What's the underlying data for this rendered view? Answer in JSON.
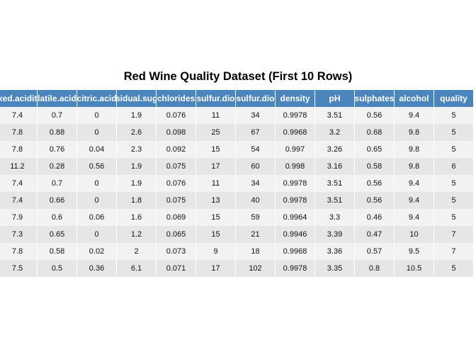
{
  "chart_data": {
    "type": "table",
    "title": "Red Wine Quality Dataset (First 10 Rows)",
    "columns": [
      "xed.acidit",
      "latile.acid",
      "citric.acid",
      "sidual.sug",
      "chlorides",
      "sulfur.dio",
      "sulfur.dio",
      "density",
      "pH",
      "sulphates",
      "alcohol",
      "quality"
    ],
    "rows": [
      [
        "7.4",
        "0.7",
        "0",
        "1.9",
        "0.076",
        "11",
        "34",
        "0.9978",
        "3.51",
        "0.56",
        "9.4",
        "5"
      ],
      [
        "7.8",
        "0.88",
        "0",
        "2.6",
        "0.098",
        "25",
        "67",
        "0.9968",
        "3.2",
        "0.68",
        "9.8",
        "5"
      ],
      [
        "7.8",
        "0.76",
        "0.04",
        "2.3",
        "0.092",
        "15",
        "54",
        "0.997",
        "3.26",
        "0.65",
        "9.8",
        "5"
      ],
      [
        "11.2",
        "0.28",
        "0.56",
        "1.9",
        "0.075",
        "17",
        "60",
        "0.998",
        "3.16",
        "0.58",
        "9.8",
        "6"
      ],
      [
        "7.4",
        "0.7",
        "0",
        "1.9",
        "0.076",
        "11",
        "34",
        "0.9978",
        "3.51",
        "0.56",
        "9.4",
        "5"
      ],
      [
        "7.4",
        "0.66",
        "0",
        "1.8",
        "0.075",
        "13",
        "40",
        "0.9978",
        "3.51",
        "0.56",
        "9.4",
        "5"
      ],
      [
        "7.9",
        "0.6",
        "0.06",
        "1.6",
        "0.069",
        "15",
        "59",
        "0.9964",
        "3.3",
        "0.46",
        "9.4",
        "5"
      ],
      [
        "7.3",
        "0.65",
        "0",
        "1.2",
        "0.065",
        "15",
        "21",
        "0.9946",
        "3.39",
        "0.47",
        "10",
        "7"
      ],
      [
        "7.8",
        "0.58",
        "0.02",
        "2",
        "0.073",
        "9",
        "18",
        "0.9968",
        "3.36",
        "0.57",
        "9.5",
        "7"
      ],
      [
        "7.5",
        "0.5",
        "0.36",
        "6.1",
        "0.071",
        "17",
        "102",
        "0.9978",
        "3.35",
        "0.8",
        "10.5",
        "5"
      ]
    ],
    "colors": {
      "header_bg": "#4b85bd",
      "header_text": "#ffffff",
      "row_odd": "#f2f2f2",
      "row_even": "#e6e6e6"
    }
  }
}
